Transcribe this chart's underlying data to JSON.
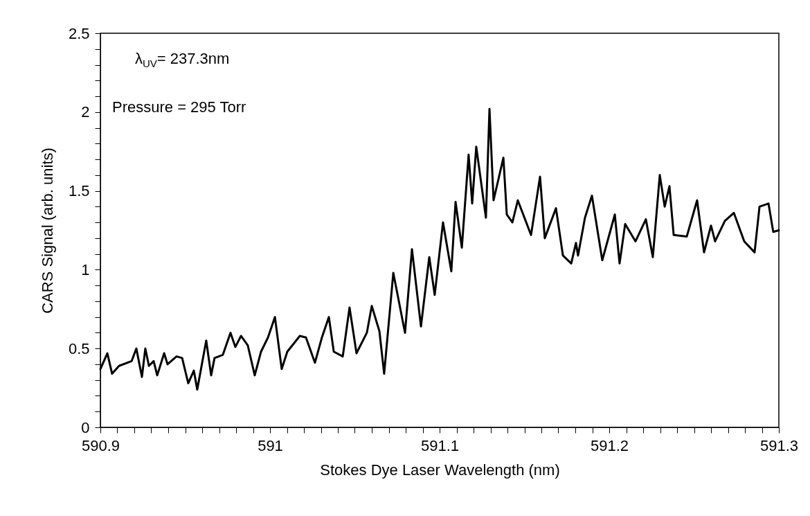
{
  "chart_data": {
    "type": "line",
    "xlabel": "Stokes Dye Laser Wavelength (nm)",
    "ylabel": "CARS Signal (arb. units)",
    "annotations": [
      "λ$_{UV}$= 237.3nm",
      "Pressure = 295 Torr"
    ],
    "x": [
      590.9,
      590.9041,
      590.9069,
      590.911,
      590.9184,
      590.9212,
      590.9245,
      590.9265,
      590.9286,
      590.9314,
      590.9335,
      590.9376,
      590.9396,
      590.9449,
      590.9482,
      590.9518,
      590.9551,
      590.9571,
      590.9624,
      590.9653,
      590.9673,
      590.9722,
      590.9767,
      590.9796,
      590.9829,
      590.9869,
      590.991,
      590.9947,
      590.9988,
      591.0029,
      591.0069,
      591.0102,
      591.0176,
      591.0212,
      591.0265,
      591.0306,
      591.0347,
      591.0376,
      591.0429,
      591.0469,
      591.051,
      591.0571,
      591.06,
      591.0645,
      591.0673,
      591.0727,
      591.0796,
      591.0837,
      591.089,
      591.0939,
      591.0971,
      591.102,
      591.1069,
      591.1094,
      591.1131,
      591.1171,
      591.1192,
      591.1216,
      591.1273,
      591.1294,
      591.1318,
      591.1376,
      591.1396,
      591.1429,
      591.1461,
      591.1539,
      591.1592,
      591.162,
      591.1686,
      591.1727,
      591.1776,
      591.1804,
      591.1816,
      591.1857,
      591.1898,
      591.1959,
      591.2033,
      591.2061,
      591.2094,
      591.2155,
      591.2216,
      591.2257,
      591.2298,
      591.2327,
      591.2355,
      591.238,
      591.2457,
      591.2518,
      591.2559,
      591.26,
      591.2624,
      591.2682,
      591.2735,
      591.2796,
      591.2857,
      591.2886,
      591.2939,
      591.2967,
      591.3
    ],
    "series": [
      {
        "color": "#000000",
        "values": [
          0.37,
          0.47,
          0.34,
          0.39,
          0.42,
          0.5,
          0.32,
          0.5,
          0.39,
          0.42,
          0.33,
          0.47,
          0.4,
          0.45,
          0.44,
          0.28,
          0.36,
          0.24,
          0.55,
          0.33,
          0.44,
          0.46,
          0.6,
          0.51,
          0.58,
          0.52,
          0.33,
          0.48,
          0.57,
          0.7,
          0.37,
          0.48,
          0.58,
          0.57,
          0.41,
          0.57,
          0.7,
          0.48,
          0.45,
          0.76,
          0.47,
          0.6,
          0.77,
          0.61,
          0.34,
          0.98,
          0.6,
          1.13,
          0.64,
          1.08,
          0.84,
          1.3,
          0.99,
          1.43,
          1.14,
          1.73,
          1.42,
          1.78,
          1.33,
          2.02,
          1.44,
          1.71,
          1.35,
          1.3,
          1.44,
          1.22,
          1.59,
          1.2,
          1.39,
          1.09,
          1.04,
          1.17,
          1.09,
          1.33,
          1.47,
          1.06,
          1.35,
          1.04,
          1.29,
          1.18,
          1.32,
          1.08,
          1.6,
          1.4,
          1.53,
          1.22,
          1.21,
          1.44,
          1.11,
          1.28,
          1.18,
          1.31,
          1.36,
          1.18,
          1.11,
          1.4,
          1.42,
          1.24,
          1.25
        ]
      }
    ],
    "xlim": [
      590.9,
      591.3
    ],
    "xticks": [
      590.9,
      {
        "value": 590.91,
        "label": null
      },
      {
        "value": 590.92,
        "label": null
      },
      {
        "value": 590.93,
        "label": null
      },
      {
        "value": 590.94,
        "label": null
      },
      {
        "value": 590.95,
        "label": null
      },
      {
        "value": 590.96,
        "label": null
      },
      {
        "value": 590.97,
        "label": null
      },
      {
        "value": 590.98,
        "label": null
      },
      {
        "value": 590.99,
        "label": null
      },
      591,
      {
        "value": 591.01,
        "label": null
      },
      {
        "value": 591.02,
        "label": null
      },
      {
        "value": 591.03,
        "label": null
      },
      {
        "value": 591.04,
        "label": null
      },
      {
        "value": 591.05,
        "label": null
      },
      {
        "value": 591.06,
        "label": null
      },
      {
        "value": 591.07,
        "label": null
      },
      {
        "value": 591.08,
        "label": null
      },
      {
        "value": 591.09,
        "label": null
      },
      591.1,
      {
        "value": 591.11,
        "label": null
      },
      {
        "value": 591.12,
        "label": null
      },
      {
        "value": 591.13,
        "label": null
      },
      {
        "value": 591.14,
        "label": null
      },
      {
        "value": 591.15,
        "label": null
      },
      {
        "value": 591.16,
        "label": null
      },
      {
        "value": 591.17,
        "label": null
      },
      {
        "value": 591.18,
        "label": null
      },
      {
        "value": 591.19,
        "label": null
      },
      591.2,
      {
        "value": 591.21,
        "label": null
      },
      {
        "value": 591.22,
        "label": null
      },
      {
        "value": 591.23,
        "label": null
      },
      {
        "value": 591.24,
        "label": null
      },
      {
        "value": 591.25,
        "label": null
      },
      {
        "value": 591.26,
        "label": null
      },
      {
        "value": 591.27,
        "label": null
      },
      {
        "value": 591.28,
        "label": null
      },
      {
        "value": 591.29,
        "label": null
      },
      591.3
    ],
    "ylim": [
      0,
      2.5
    ],
    "yticks": [
      0,
      {
        "value": 0.1,
        "label": null
      },
      {
        "value": 0.2,
        "label": null
      },
      {
        "value": 0.3,
        "label": null
      },
      {
        "value": 0.4,
        "label": null
      },
      0.5,
      {
        "value": 0.6,
        "label": null
      },
      {
        "value": 0.7,
        "label": null
      },
      {
        "value": 0.8,
        "label": null
      },
      {
        "value": 0.9,
        "label": null
      },
      1,
      {
        "value": 1.1,
        "label": null
      },
      {
        "value": 1.2,
        "label": null
      },
      {
        "value": 1.3,
        "label": null
      },
      {
        "value": 1.4,
        "label": null
      },
      1.5,
      {
        "value": 1.6,
        "label": null
      },
      {
        "value": 1.7,
        "label": null
      },
      {
        "value": 1.8,
        "label": null
      },
      {
        "value": 1.9,
        "label": null
      },
      2,
      {
        "value": 2.1,
        "label": null
      },
      {
        "value": 2.2,
        "label": null
      },
      {
        "value": 2.3,
        "label": null
      },
      {
        "value": 2.4,
        "label": null
      },
      2.5
    ]
  }
}
